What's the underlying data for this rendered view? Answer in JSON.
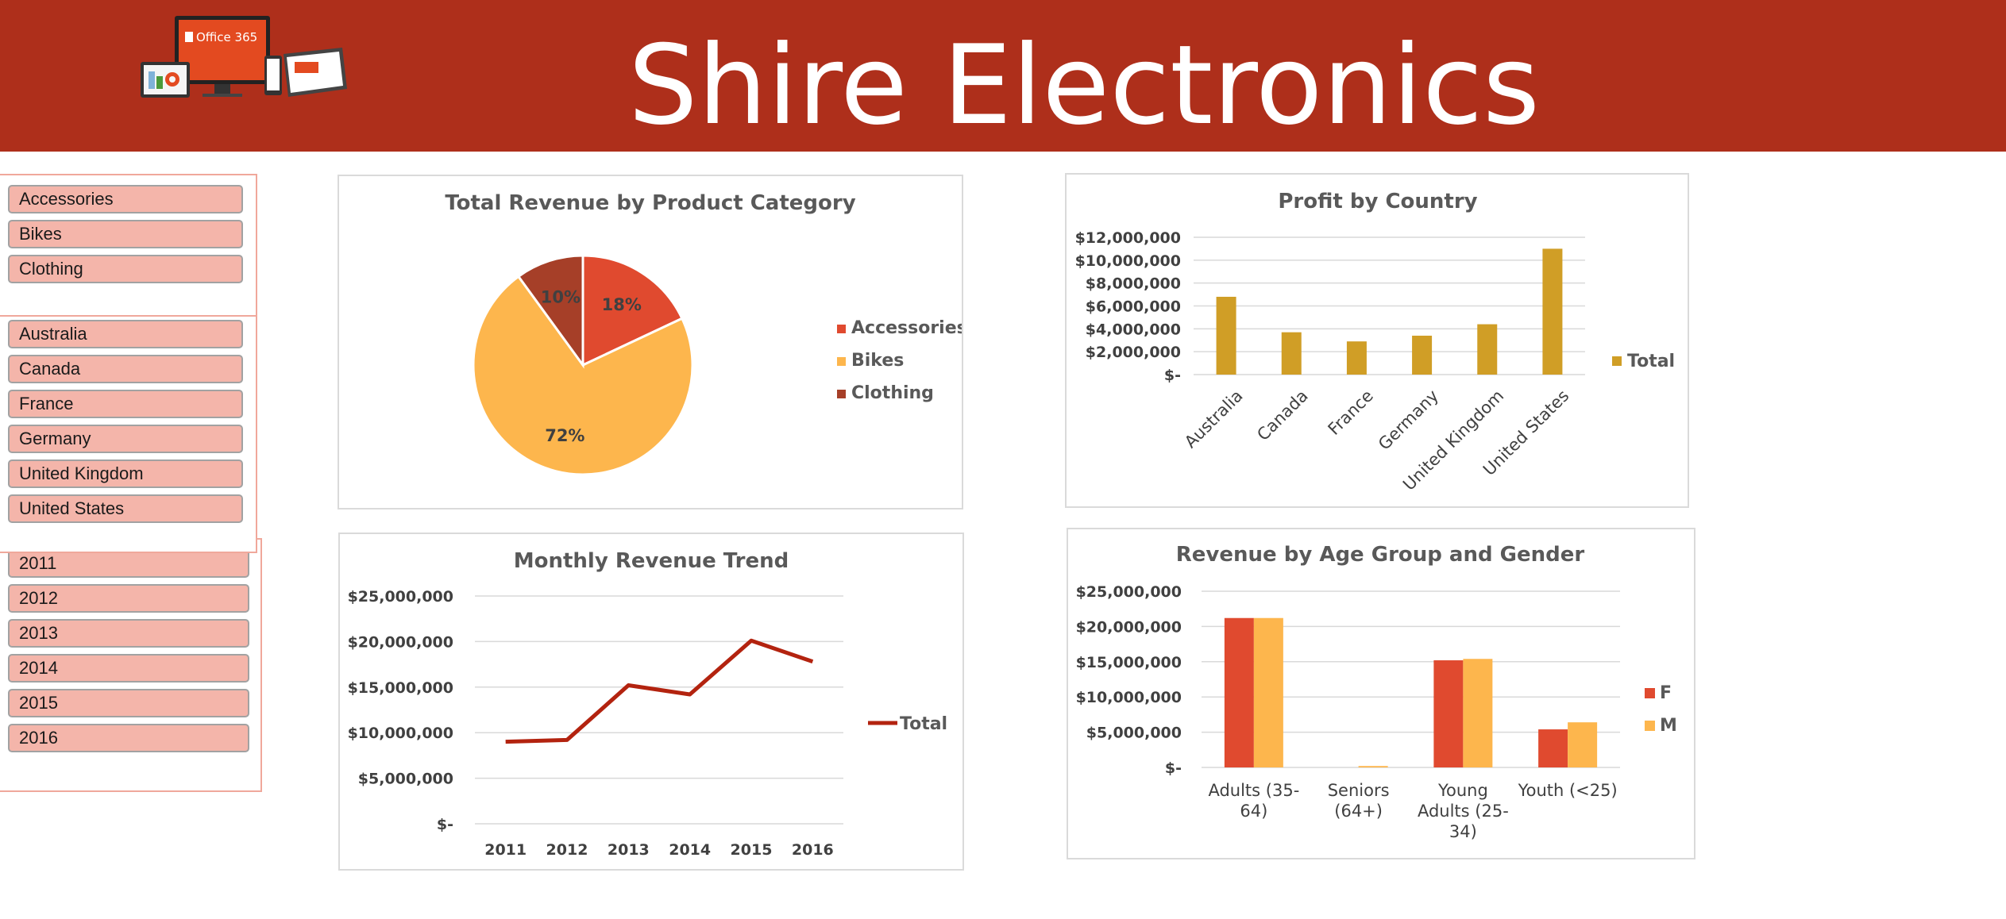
{
  "header": {
    "title": "Shire Electronics",
    "logo_text": "Office 365"
  },
  "slicers": {
    "category": [
      "Accessories",
      "Bikes",
      "Clothing"
    ],
    "country": [
      "Australia",
      "Canada",
      "France",
      "Germany",
      "United Kingdom",
      "United States"
    ],
    "year": [
      "2011",
      "2012",
      "2013",
      "2014",
      "2015",
      "2016"
    ]
  },
  "colors": {
    "banner": "#ae2f1b",
    "accessories": "#e04a2f",
    "bikes": "#fdb64d",
    "clothing": "#a63f28",
    "profit_bar": "#d09e26",
    "line": "#b3230f",
    "female": "#e04a2f",
    "male": "#fdb64d"
  },
  "chart_data": [
    {
      "id": "pie",
      "type": "pie",
      "title": "Total Revenue by Product Category",
      "categories": [
        "Accessories",
        "Bikes",
        "Clothing"
      ],
      "values": [
        18,
        72,
        10
      ],
      "labels": [
        "18%",
        "72%",
        "10%"
      ],
      "legend": "right"
    },
    {
      "id": "profit",
      "type": "bar",
      "title": "Profit by Country",
      "categories": [
        "Australia",
        "Canada",
        "France",
        "Germany",
        "United Kingdom",
        "United States"
      ],
      "series": [
        {
          "name": "Total",
          "values": [
            6800000,
            3700000,
            2900000,
            3400000,
            4400000,
            11000000
          ]
        }
      ],
      "ylim": [
        0,
        12000000
      ],
      "yticks": [
        "$-",
        "$2,000,000",
        "$4,000,000",
        "$6,000,000",
        "$8,000,000",
        "$10,000,000",
        "$12,000,000"
      ],
      "legend": "right"
    },
    {
      "id": "trend",
      "type": "line",
      "title": "Monthly Revenue Trend",
      "categories": [
        "2011",
        "2012",
        "2013",
        "2014",
        "2015",
        "2016"
      ],
      "series": [
        {
          "name": "Total",
          "values": [
            9000000,
            9200000,
            15200000,
            14200000,
            20100000,
            17800000
          ]
        }
      ],
      "ylim": [
        0,
        25000000
      ],
      "yticks": [
        "$-",
        "$5,000,000",
        "$10,000,000",
        "$15,000,000",
        "$20,000,000",
        "$25,000,000"
      ],
      "legend": "right"
    },
    {
      "id": "age",
      "type": "bar",
      "title": "Revenue by Age Group and Gender",
      "categories": [
        [
          "Adults (35-",
          "64)"
        ],
        [
          "Seniors",
          "(64+)"
        ],
        [
          "Young",
          "Adults (25-",
          "34)"
        ],
        [
          "Youth (<25)"
        ]
      ],
      "series": [
        {
          "name": "F",
          "values": [
            21200000,
            0,
            15200000,
            5400000
          ]
        },
        {
          "name": "M",
          "values": [
            21200000,
            200000,
            15400000,
            6400000
          ]
        }
      ],
      "ylim": [
        0,
        25000000
      ],
      "yticks": [
        "$-",
        "$5,000,000",
        "$10,000,000",
        "$15,000,000",
        "$20,000,000",
        "$25,000,000"
      ],
      "legend": "right"
    }
  ]
}
